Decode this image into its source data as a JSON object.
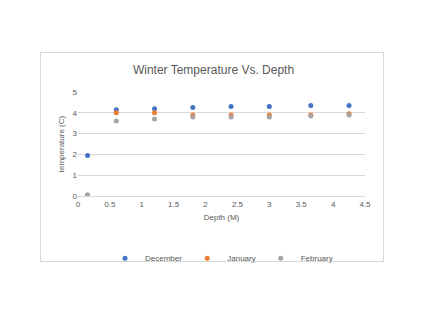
{
  "chart_data": {
    "type": "scatter",
    "title": "Winter Temperature Vs. Depth",
    "x_label": "Depth (M)",
    "y_label": "temperature (C)",
    "x": [
      0.15,
      0.6,
      1.2,
      1.8,
      2.4,
      3.0,
      3.65,
      4.25
    ],
    "series": [
      {
        "name": "December",
        "color": "#4472c4",
        "values": [
          1.95,
          4.15,
          4.2,
          4.25,
          4.3,
          4.3,
          4.35,
          4.35
        ]
      },
      {
        "name": "January",
        "color": "#ed7d31",
        "values": [
          0.05,
          4.0,
          4.0,
          3.9,
          3.9,
          3.9,
          3.9,
          3.95
        ]
      },
      {
        "name": "February",
        "color": "#a5a5a5",
        "values": [
          0.05,
          3.6,
          3.7,
          3.8,
          3.8,
          3.8,
          3.85,
          3.9
        ]
      }
    ],
    "xlim": [
      0,
      4.5
    ],
    "xticks": [
      0,
      0.5,
      1,
      1.5,
      2,
      2.5,
      3,
      3.5,
      4,
      4.5
    ],
    "ylim": [
      0,
      5
    ],
    "yticks": [
      0,
      1,
      2,
      3,
      4,
      5
    ],
    "grid": true,
    "legend": "bottom",
    "marker": "circle"
  }
}
